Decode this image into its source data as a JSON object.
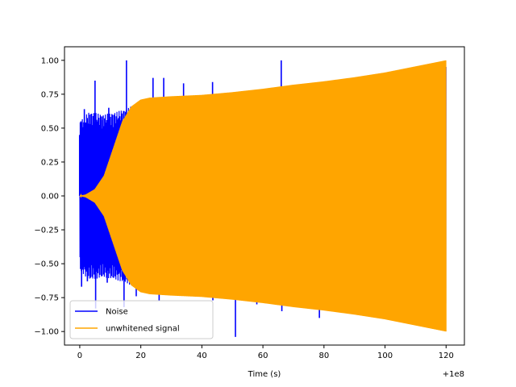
{
  "chart_data": {
    "type": "line",
    "title": "",
    "xlabel": "Time (s)",
    "ylabel": "",
    "x_offset_label": "+1e8",
    "xlim": [
      -5,
      126
    ],
    "ylim": [
      -1.1,
      1.1
    ],
    "x_ticks": [
      0,
      20,
      40,
      60,
      80,
      100,
      120
    ],
    "x_tick_labels": [
      "0",
      "20",
      "40",
      "60",
      "80",
      "100",
      "120"
    ],
    "y_ticks": [
      1.0,
      0.75,
      0.5,
      0.25,
      0.0,
      -0.25,
      -0.5,
      -0.75,
      -1.0
    ],
    "y_tick_labels": [
      "1.00",
      "0.75",
      "0.50",
      "0.25",
      "0.00",
      "−0.25",
      "−0.50",
      "−0.75",
      "−1.00"
    ],
    "grid": false,
    "legend_position": "lower-left",
    "series": [
      {
        "name": "Noise",
        "color": "#0000ff",
        "x_range": [
          0,
          120
        ],
        "envelope_upper": [
          [
            0,
            0.55
          ],
          [
            3,
            0.62
          ],
          [
            8,
            0.6
          ],
          [
            12,
            0.62
          ],
          [
            16,
            0.65
          ],
          [
            20,
            0.7
          ],
          [
            30,
            0.72
          ],
          [
            43,
            0.74
          ],
          [
            60,
            0.76
          ],
          [
            80,
            0.8
          ],
          [
            100,
            0.88
          ],
          [
            120,
            0.97
          ]
        ],
        "envelope_lower": [
          [
            0,
            -0.55
          ],
          [
            3,
            -0.62
          ],
          [
            8,
            -0.6
          ],
          [
            12,
            -0.62
          ],
          [
            16,
            -0.65
          ],
          [
            20,
            -0.7
          ],
          [
            30,
            -0.72
          ],
          [
            43,
            -0.74
          ],
          [
            60,
            -0.77
          ],
          [
            80,
            -0.82
          ],
          [
            100,
            -0.9
          ],
          [
            120,
            -0.97
          ]
        ],
        "spikes": [
          [
            -0.05,
            0.45
          ],
          [
            0.4,
            0.55
          ],
          [
            1.5,
            0.64
          ],
          [
            3.5,
            0.53
          ],
          [
            5.0,
            0.85
          ],
          [
            7.0,
            0.56
          ],
          [
            9.5,
            0.65
          ],
          [
            12.5,
            0.48
          ],
          [
            15.3,
            1.0
          ],
          [
            17.5,
            0.62
          ],
          [
            24.0,
            0.87
          ],
          [
            27.5,
            0.87
          ],
          [
            34.0,
            0.83
          ],
          [
            43.5,
            0.84
          ],
          [
            66.0,
            1.0
          ],
          [
            78.0,
            0.82
          ],
          [
            0.6,
            -0.67
          ],
          [
            2.5,
            -0.63
          ],
          [
            5.2,
            -0.83
          ],
          [
            9.0,
            -0.64
          ],
          [
            14.5,
            -0.82
          ],
          [
            18.5,
            -0.74
          ],
          [
            26.0,
            -0.77
          ],
          [
            43.6,
            -0.77
          ],
          [
            51.0,
            -1.04
          ],
          [
            58.0,
            -0.8
          ],
          [
            66.2,
            -0.85
          ],
          [
            78.5,
            -0.9
          ]
        ]
      },
      {
        "name": "unwhitened signal",
        "color": "#ffa500",
        "x_range": [
          0,
          120
        ],
        "amplitude": [
          [
            0,
            0.0
          ],
          [
            2,
            0.01
          ],
          [
            5,
            0.05
          ],
          [
            8,
            0.15
          ],
          [
            11,
            0.35
          ],
          [
            14,
            0.55
          ],
          [
            17,
            0.66
          ],
          [
            20,
            0.71
          ],
          [
            23,
            0.725
          ],
          [
            30,
            0.735
          ],
          [
            40,
            0.745
          ],
          [
            50,
            0.765
          ],
          [
            60,
            0.79
          ],
          [
            70,
            0.82
          ],
          [
            80,
            0.845
          ],
          [
            90,
            0.875
          ],
          [
            100,
            0.91
          ],
          [
            110,
            0.955
          ],
          [
            120,
            1.0
          ]
        ]
      }
    ]
  }
}
